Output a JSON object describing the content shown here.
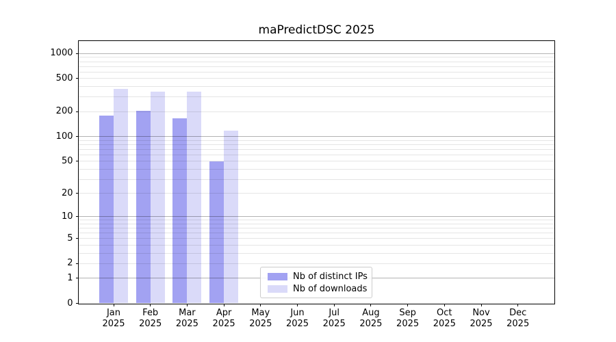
{
  "chart_data": {
    "type": "bar",
    "title": "maPredictDSC 2025",
    "xlabel": "",
    "ylabel": "",
    "categories": [
      {
        "month": "Jan",
        "year": "2025"
      },
      {
        "month": "Feb",
        "year": "2025"
      },
      {
        "month": "Mar",
        "year": "2025"
      },
      {
        "month": "Apr",
        "year": "2025"
      },
      {
        "month": "May",
        "year": "2025"
      },
      {
        "month": "Jun",
        "year": "2025"
      },
      {
        "month": "Jul",
        "year": "2025"
      },
      {
        "month": "Aug",
        "year": "2025"
      },
      {
        "month": "Sep",
        "year": "2025"
      },
      {
        "month": "Oct",
        "year": "2025"
      },
      {
        "month": "Nov",
        "year": "2025"
      },
      {
        "month": "Dec",
        "year": "2025"
      }
    ],
    "series": [
      {
        "name": "Nb of distinct IPs",
        "color": "#a2a2f2",
        "values": [
          180,
          204,
          165,
          50,
          null,
          null,
          null,
          null,
          null,
          null,
          null,
          null
        ]
      },
      {
        "name": "Nb of downloads",
        "color": "#dadaf9",
        "values": [
          375,
          350,
          349,
          118,
          null,
          null,
          null,
          null,
          null,
          null,
          null,
          null
        ]
      }
    ],
    "y_axis": {
      "scale": "log1p",
      "tick_labels": [
        "0",
        "1",
        "2",
        "5",
        "10",
        "20",
        "50",
        "100",
        "200",
        "500",
        "1000"
      ],
      "tick_values": [
        0,
        1,
        2,
        5,
        10,
        20,
        50,
        100,
        200,
        500,
        1000
      ],
      "major_grid_values": [
        1,
        10,
        100,
        1000
      ],
      "minor_grid_values": [
        2,
        3,
        4,
        5,
        6,
        7,
        8,
        9,
        20,
        30,
        40,
        50,
        60,
        70,
        80,
        90,
        200,
        300,
        400,
        500,
        600,
        700,
        800,
        900
      ],
      "ylim": [
        0,
        1400
      ]
    },
    "grid": true,
    "legend_position": "lower center",
    "colors": {
      "grid_minor": "rgba(0,0,0,0.10)",
      "grid_major": "rgba(0,0,0,0.30)",
      "axis_line": "#000000",
      "text": "#000000",
      "background": "#ffffff"
    }
  }
}
